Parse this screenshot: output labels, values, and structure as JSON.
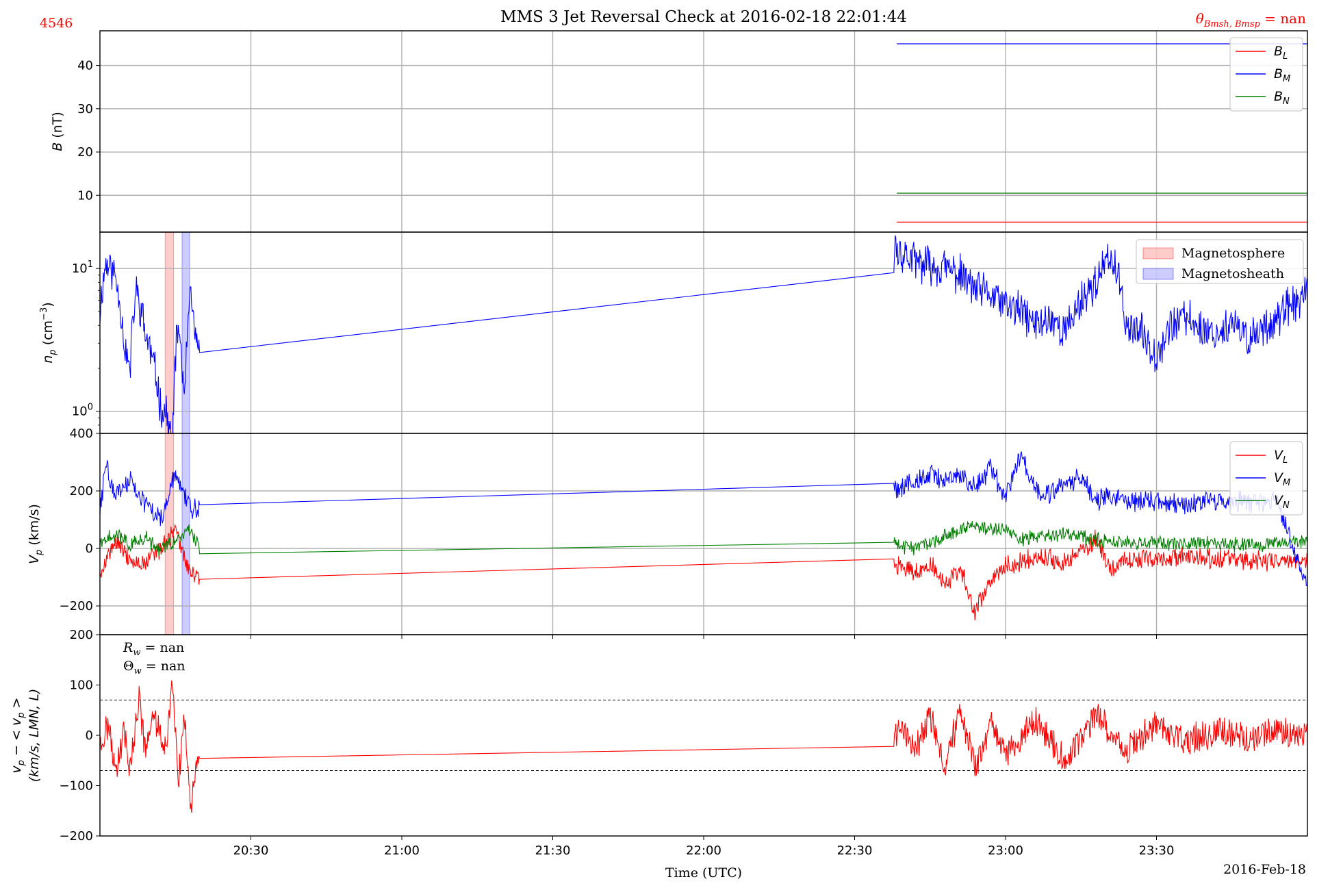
{
  "figure": {
    "title": "MMS 3 Jet Reversal Check at 2016-02-18 22:01:44",
    "event_id": "4546",
    "theta_label_prefix": "θ",
    "theta_label_sub": "Bmsh, Bmsp",
    "theta_label_suffix": " = nan",
    "xlabel": "Time (UTC)",
    "date_label": "2016-Feb-18",
    "xticks": [
      "20:30",
      "21:00",
      "21:30",
      "22:00",
      "22:30",
      "23:00",
      "23:30"
    ],
    "colors": {
      "red": "#ff0000",
      "blue": "#0000ff",
      "green": "#008000",
      "grid": "#b0b0b0"
    }
  },
  "panels": {
    "b": {
      "ylabel_var": "B",
      "ylabel_unit": " (nT)",
      "yticks": [
        "10",
        "20",
        "30",
        "40"
      ],
      "legend": [
        {
          "label": "B",
          "sub": "L",
          "color": "#ff0000"
        },
        {
          "label": "B",
          "sub": "M",
          "color": "#0000ff"
        },
        {
          "label": "B",
          "sub": "N",
          "color": "#008000"
        }
      ]
    },
    "np": {
      "ylabel_var": "n",
      "ylabel_sub": "p",
      "ylabel_unit": " (cm",
      "ylabel_sup": "−3",
      "ylabel_close": ")",
      "ytick_base": "10",
      "yticks_exp": [
        "0",
        "1"
      ],
      "legend": [
        {
          "label": "Magnetosphere",
          "color": "#ff0000"
        },
        {
          "label": "Magnetosheath",
          "color": "#0000ff"
        }
      ]
    },
    "vp": {
      "ylabel_var": "V",
      "ylabel_sub": "p",
      "ylabel_unit": " (km/s)",
      "yticks": [
        "400",
        "200",
        "0",
        "−200"
      ],
      "legend": [
        {
          "label": "V",
          "sub": "L",
          "color": "#ff0000"
        },
        {
          "label": "V",
          "sub": "M",
          "color": "#0000ff"
        },
        {
          "label": "V",
          "sub": "N",
          "color": "#008000"
        }
      ]
    },
    "dv": {
      "ylabel_line1": "v",
      "ylabel_line1_sub": "p",
      "ylabel_line1_rest": " − < v",
      "ylabel_line1_sub2": "p",
      "ylabel_line1_end": " >",
      "ylabel_line2": "(km/s, LMN, L)",
      "yticks": [
        "200",
        "100",
        "0",
        "−100",
        "−200"
      ],
      "rw_label": "R",
      "rw_sub": "w",
      "rw_value": " = nan",
      "thw_label": "Θ",
      "thw_sub": "w",
      "thw_value": " = nan"
    }
  },
  "chart_data": [
    {
      "type": "line",
      "panel": "B (nT)",
      "x_unit": "hours UTC",
      "xlim": [
        20.0,
        24.0
      ],
      "ylim": [
        1.5,
        48.0
      ],
      "grid": true,
      "legend_position": "top-right",
      "series": [
        {
          "name": "B_L",
          "color": "#ff0000",
          "x": [
            22.64,
            24.0
          ],
          "y": [
            3.8,
            3.8
          ]
        },
        {
          "name": "B_M",
          "color": "#0000ff",
          "x": [
            22.64,
            24.0
          ],
          "y": [
            45.0,
            45.0
          ]
        },
        {
          "name": "B_N",
          "color": "#008000",
          "x": [
            22.64,
            24.0
          ],
          "y": [
            10.5,
            10.5
          ]
        }
      ]
    },
    {
      "type": "line",
      "panel": "n_p (cm^-3)",
      "y_scale": "log",
      "xlim": [
        20.0,
        24.0
      ],
      "ylim": [
        0.7,
        18.0
      ],
      "grid": true,
      "legend_position": "top-right",
      "spans": [
        {
          "name": "Magnetosphere",
          "color": "#ff0000",
          "x0": 20.216,
          "x1": 20.244
        },
        {
          "name": "Magnetosheath",
          "color": "#0000ff",
          "x0": 20.272,
          "x1": 20.297
        }
      ],
      "series": [
        {
          "name": "n_p",
          "color": "#0000ff",
          "x": [
            20.0,
            20.02,
            20.05,
            20.08,
            20.1,
            20.12,
            20.15,
            20.18,
            20.2,
            20.22,
            20.24,
            20.26,
            20.28,
            20.3,
            20.325,
            20.326,
            22.63,
            22.64,
            22.7,
            22.8,
            22.85,
            22.9,
            22.95,
            23.0,
            23.05,
            23.1,
            23.15,
            23.2,
            23.25,
            23.3,
            23.35,
            23.4,
            23.45,
            23.5,
            23.55,
            23.6,
            23.65,
            23.7,
            23.75,
            23.8,
            23.85,
            23.9,
            23.95,
            24.0
          ],
          "y": [
            5.0,
            11.0,
            9.0,
            3.0,
            1.8,
            7.0,
            3.5,
            2.0,
            1.1,
            0.95,
            0.55,
            4.0,
            0.9,
            6.0,
            2.0,
            2.6,
            13.0,
            13.5,
            11.0,
            10.0,
            9.0,
            7.0,
            6.5,
            5.5,
            5.0,
            4.0,
            4.5,
            3.5,
            6.0,
            8.0,
            12.0,
            4.0,
            3.5,
            2.5,
            4.0,
            4.5,
            3.8,
            3.5,
            4.0,
            3.2,
            3.8,
            4.5,
            5.5,
            6.5
          ]
        }
      ]
    },
    {
      "type": "line",
      "panel": "V_p (km/s)",
      "xlim": [
        20.0,
        24.0
      ],
      "ylim": [
        -300,
        400
      ],
      "grid": true,
      "legend_position": "top-right",
      "series": [
        {
          "name": "V_L",
          "color": "#ff0000",
          "x": [
            20.0,
            20.05,
            20.1,
            20.15,
            20.2,
            20.25,
            20.3,
            20.33,
            22.63,
            22.65,
            22.7,
            22.75,
            22.8,
            22.85,
            22.9,
            22.95,
            23.0,
            23.1,
            23.2,
            23.3,
            23.35,
            23.4,
            23.5,
            23.6,
            23.7,
            23.8,
            23.9,
            24.0
          ],
          "y": [
            -80,
            20,
            -40,
            -60,
            0,
            60,
            -90,
            -95,
            -65,
            -60,
            -80,
            -50,
            -120,
            -70,
            -220,
            -110,
            -60,
            -30,
            -50,
            30,
            -80,
            -40,
            -40,
            -30,
            -35,
            -40,
            -45,
            -40
          ]
        },
        {
          "name": "V_M",
          "color": "#0000ff",
          "x": [
            20.0,
            20.02,
            20.05,
            20.1,
            20.15,
            20.2,
            20.25,
            20.3,
            20.33,
            22.63,
            22.65,
            22.7,
            22.75,
            22.8,
            22.85,
            22.9,
            22.95,
            23.0,
            23.05,
            23.1,
            23.15,
            23.2,
            23.25,
            23.3,
            23.35,
            23.4,
            23.5,
            23.6,
            23.7,
            23.8,
            23.9,
            24.0
          ],
          "y": [
            120,
            300,
            180,
            240,
            150,
            100,
            260,
            130,
            140,
            210,
            200,
            240,
            260,
            230,
            250,
            220,
            280,
            180,
            330,
            210,
            190,
            230,
            250,
            170,
            180,
            170,
            160,
            150,
            165,
            160,
            170,
            -150
          ]
        },
        {
          "name": "V_N",
          "color": "#008000",
          "x": [
            20.0,
            20.05,
            20.1,
            20.15,
            20.2,
            20.25,
            20.3,
            20.33,
            22.63,
            22.65,
            22.7,
            22.8,
            22.9,
            23.0,
            23.05,
            23.1,
            23.2,
            23.3,
            23.4,
            23.5,
            23.6,
            23.7,
            23.8,
            23.9,
            24.0
          ],
          "y": [
            20,
            50,
            10,
            40,
            -10,
            30,
            60,
            0,
            20,
            10,
            0,
            40,
            80,
            60,
            30,
            40,
            50,
            30,
            20,
            20,
            15,
            20,
            10,
            20,
            20
          ]
        }
      ]
    },
    {
      "type": "line",
      "panel": "v_p - <v_p> (km/s, LMN, L)",
      "xlim": [
        20.0,
        24.0
      ],
      "ylim": [
        -200,
        200
      ],
      "grid": false,
      "reference_lines": [
        70,
        -70
      ],
      "annotations": [
        "R_w = nan",
        "Θ_w = nan"
      ],
      "series": [
        {
          "name": "dV_L",
          "color": "#ff0000",
          "x": [
            20.0,
            20.03,
            20.05,
            20.08,
            20.1,
            20.13,
            20.15,
            20.18,
            20.2,
            20.22,
            20.24,
            20.26,
            20.28,
            20.3,
            20.32,
            20.33,
            22.63,
            22.65,
            22.7,
            22.75,
            22.8,
            22.85,
            22.9,
            22.95,
            23.0,
            23.1,
            23.2,
            23.3,
            23.4,
            23.5,
            23.6,
            23.7,
            23.8,
            23.9,
            24.0
          ],
          "y": [
            -20,
            20,
            -80,
            10,
            -70,
            70,
            -30,
            40,
            10,
            -20,
            120,
            -90,
            40,
            -140,
            -50,
            -60,
            -5,
            10,
            -30,
            40,
            -60,
            50,
            -70,
            20,
            -40,
            30,
            -50,
            40,
            -30,
            20,
            -10,
            10,
            -10,
            10,
            0
          ]
        }
      ]
    }
  ]
}
